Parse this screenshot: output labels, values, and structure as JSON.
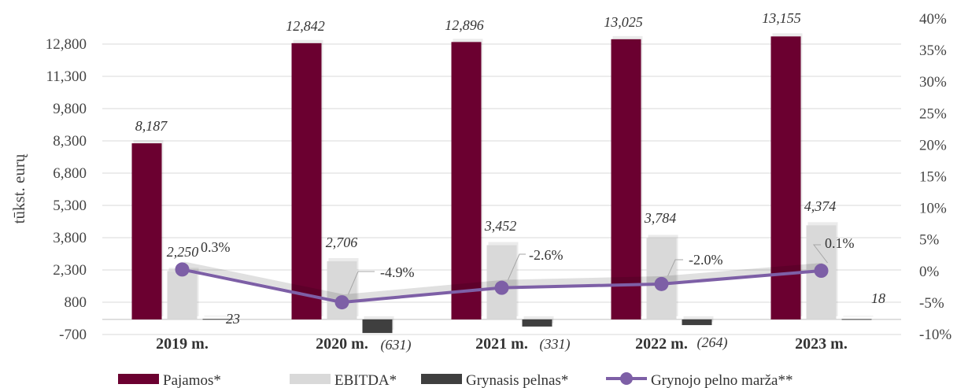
{
  "chart_data": {
    "type": "bar",
    "ylabel": "tūkst. eurų",
    "categories": [
      "2019 m.",
      "2020 m.",
      "2021 m.",
      "2022 m.",
      "2023 m."
    ],
    "y_left": {
      "min": -700,
      "max": 12800,
      "ticks": [
        -700,
        800,
        2300,
        3800,
        5300,
        6800,
        8300,
        9800,
        11300,
        12800
      ],
      "tick_labels": [
        "-700",
        "800",
        "2,300",
        "3,800",
        "5,300",
        "6,800",
        "8,300",
        "9,800",
        "11,300",
        "12,800"
      ]
    },
    "y_right": {
      "min": -10,
      "max": 40,
      "ticks": [
        -10,
        -5,
        0,
        5,
        10,
        15,
        20,
        25,
        30,
        35,
        40
      ],
      "tick_labels": [
        "-10%",
        "-5%",
        "0%",
        "5%",
        "10%",
        "15%",
        "20%",
        "25%",
        "30%",
        "35%",
        "40%"
      ]
    },
    "series": [
      {
        "name": "Pajamos*",
        "type": "bar",
        "axis": "left",
        "color": "#6b0030",
        "values": [
          8187,
          12842,
          12896,
          13025,
          13155
        ],
        "labels": [
          "8,187",
          "12,842",
          "12,896",
          "13,025",
          "13,155"
        ]
      },
      {
        "name": "EBITDA*",
        "type": "bar",
        "axis": "left",
        "color": "#d9d9d9",
        "values": [
          2250,
          2706,
          3452,
          3784,
          4374
        ],
        "labels": [
          "2,250",
          "2,706",
          "3,452",
          "3,784",
          "4,374"
        ]
      },
      {
        "name": "Grynasis pelnas*",
        "type": "bar",
        "axis": "left",
        "color": "#3f3f3f",
        "values": [
          23,
          -631,
          -331,
          -264,
          18
        ],
        "labels": [
          "23",
          "(631)",
          "(331)",
          "(264)",
          "18"
        ]
      },
      {
        "name": "Grynojo pelno marža**",
        "type": "line",
        "axis": "right",
        "color": "#7d5fa6",
        "values": [
          0.3,
          -4.9,
          -2.6,
          -2.0,
          0.1
        ],
        "labels": [
          "0.3%",
          "-4.9%",
          "-2.6%",
          "-2.0%",
          "0.1%"
        ]
      }
    ],
    "legend_position": "bottom"
  }
}
